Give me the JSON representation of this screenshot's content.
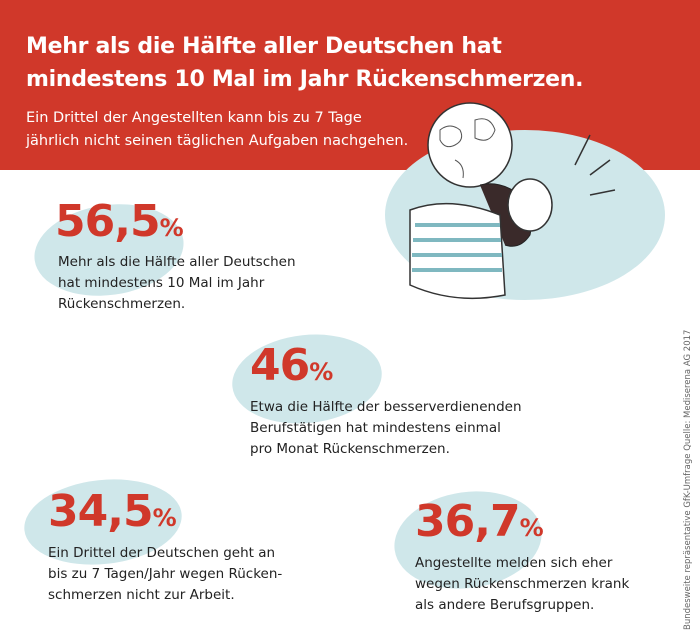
{
  "header": {
    "title_line1": "Mehr als die Hälfte aller Deutschen hat",
    "title_line2": "mindestens 10 Mal im Jahr Rückenschmerzen.",
    "subtitle_line1": "Ein Drittel der Angestellten kann bis zu 7 Tage",
    "subtitle_line2": "jährlich nicht seinen täglichen Aufgaben nachgehen."
  },
  "stats": [
    {
      "value": "56,5",
      "unit": "%",
      "lines": [
        "Mehr als die Hälfte aller Deutschen",
        "hat mindestens 10 Mal im Jahr",
        "Rückenschmerzen."
      ]
    },
    {
      "value": "46",
      "unit": "%",
      "lines": [
        "Etwa die Hälfte der besserverdienenden",
        "Berufstätigen hat mindestens einmal",
        "pro Monat Rückenschmerzen."
      ]
    },
    {
      "value": "34,5",
      "unit": "%",
      "lines": [
        "Ein Drittel der Deutschen geht an",
        "bis zu 7 Tagen/Jahr wegen Rücken-",
        "schmerzen nicht zur Arbeit."
      ]
    },
    {
      "value": "36,7",
      "unit": "%",
      "lines": [
        "Angestellte melden sich eher",
        "wegen Rückenschmerzen krank",
        "als andere Berufsgruppen."
      ]
    }
  ],
  "source": "Bundesweite repräsentative GfK-Umfrage  Quelle: Mediserena AG 2017",
  "colors": {
    "accent": "#d0382a",
    "blob": "#cfe7ea"
  },
  "illustration": "woman-carrying-globe-icon"
}
